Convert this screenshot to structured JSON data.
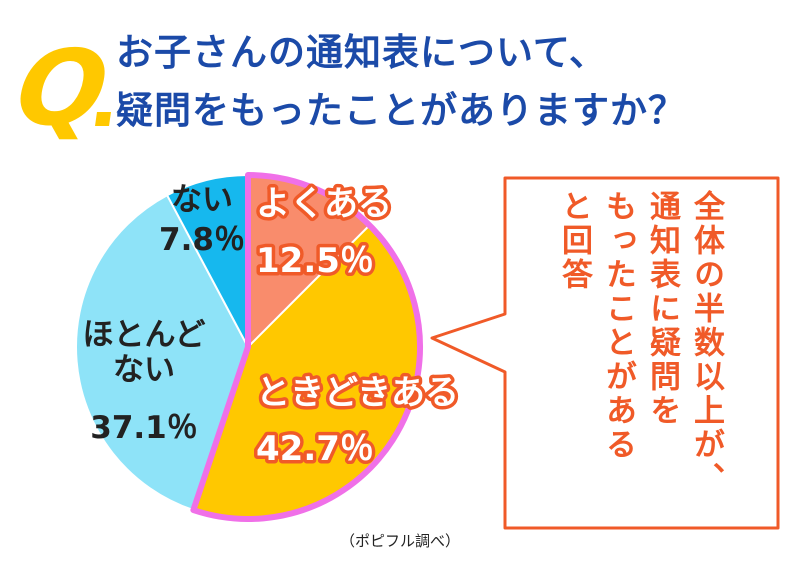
{
  "header": {
    "q_mark": "Q",
    "title_line1": "お子さんの通知表について、",
    "title_line2": "疑問をもったことがありますか？"
  },
  "chart_data": {
    "type": "pie",
    "title": "お子さんの通知表について、疑問をもったことがありますか？",
    "slices": [
      {
        "label": "よくある",
        "value": 12.5,
        "value_text": "12.5",
        "unit": "％",
        "color": "#f98c6c"
      },
      {
        "label": "ときどきある",
        "value": 42.7,
        "value_text": "42.7",
        "unit": "％",
        "color": "#ffc800"
      },
      {
        "label": "ほとんどない",
        "value": 37.1,
        "value_text": "37.1",
        "unit": "％",
        "color": "#8ee3f8"
      },
      {
        "label": "ない",
        "value": 7.8,
        "value_text": "7.8",
        "unit": "％",
        "color": "#16b8ee"
      }
    ],
    "highlight_color": "#f070e8",
    "start": "top",
    "direction": "clockwise"
  },
  "callout": {
    "columns": [
      "全体の半数以上が、",
      "通知表に疑問を",
      "もったことがある",
      "と回答"
    ],
    "border_color": "#f05a28"
  },
  "source": "（ポピフル調べ）"
}
